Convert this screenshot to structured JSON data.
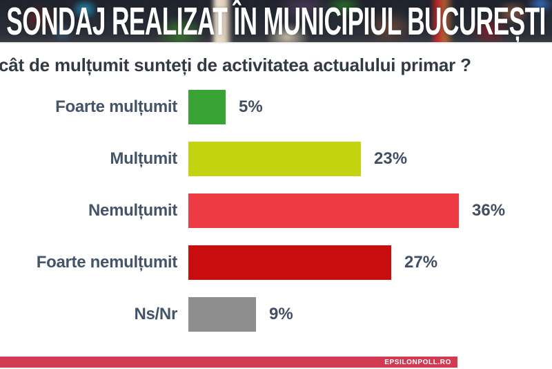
{
  "header": {
    "title": "SONDAJ REALIZAT ÎN MUNICIPIUL BUCUREȘTI"
  },
  "question": {
    "text": "cât de mulțumit sunteți de activitatea actualului primar ?"
  },
  "chart_data": {
    "type": "bar",
    "orientation": "horizontal",
    "title": "cât de mulțumit sunteți de activitatea actualului primar ?",
    "categories": [
      "Foarte mulțumit",
      "Mulțumit",
      "Nemulțumit",
      "Foarte nemulțumit",
      "Ns/Nr"
    ],
    "values": [
      5,
      23,
      36,
      27,
      9
    ],
    "value_labels": [
      "5%",
      "23%",
      "36%",
      "27%",
      "9%"
    ],
    "bar_colors": [
      "#3aa335",
      "#c3d40e",
      "#ee3a43",
      "#c90d0f",
      "#8e8e8e"
    ],
    "unit": "%",
    "axis_max": 36,
    "grid": false,
    "legend": "none"
  },
  "footer": {
    "brand": "EPSILONPOLL.RO",
    "band_color": "#d23c52"
  },
  "colors": {
    "question_text": "#343a44",
    "category_label": "#44546a",
    "value_label": "#414e63",
    "header_text": "#ffffff"
  }
}
